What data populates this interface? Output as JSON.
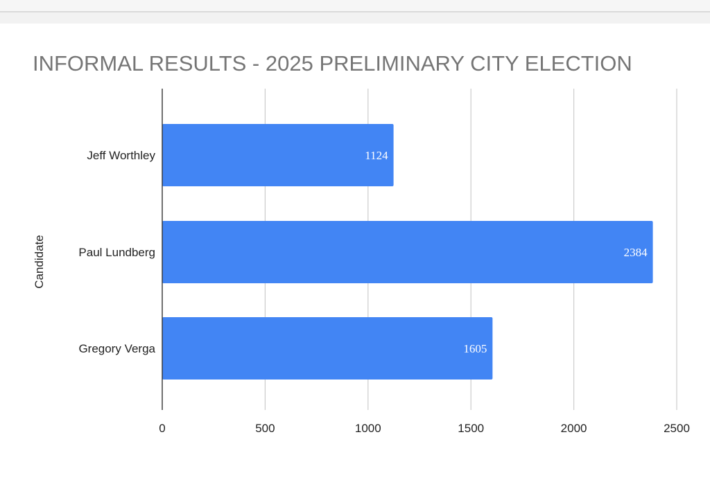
{
  "chart_data": {
    "type": "bar",
    "orientation": "horizontal",
    "title": "INFORMAL RESULTS - 2025 PRELIMINARY CITY ELECTION",
    "xlabel": "",
    "ylabel": "Candidate",
    "categories": [
      "Jeff Worthley",
      "Paul Lundberg",
      "Gregory Verga"
    ],
    "values": [
      1124,
      2384,
      1605
    ],
    "data_labels": [
      "1124",
      "2384",
      "1605"
    ],
    "xlim": [
      0,
      2500
    ],
    "x_ticks": [
      "0",
      "500",
      "1000",
      "1500",
      "2000",
      "2500"
    ],
    "grid": true,
    "legend": "none",
    "bar_color": "#4285f4"
  }
}
